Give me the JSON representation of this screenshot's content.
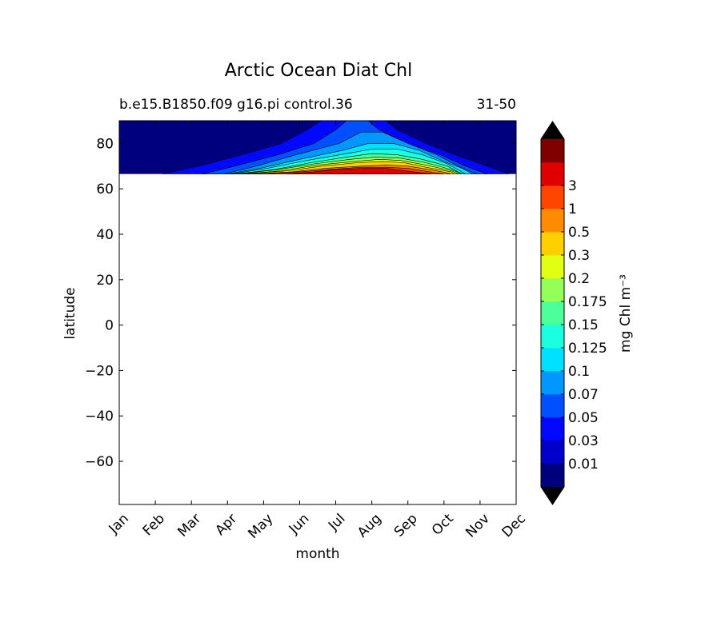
{
  "chart_data": {
    "type": "heatmap",
    "title": "Arctic Ocean Diat Chl",
    "subtitle_left": "b.e15.B1850.f09 g16.pi control.36",
    "subtitle_right": "31-50",
    "xlabel": "month",
    "ylabel": "latitude",
    "x_ticks": [
      "Jan",
      "Feb",
      "Mar",
      "Apr",
      "May",
      "Jun",
      "Jul",
      "Aug",
      "Sep",
      "Oct",
      "Nov",
      "Dec"
    ],
    "y_ticks": [
      80,
      60,
      40,
      20,
      0,
      -20,
      -40,
      -60
    ],
    "y_tick_labels": [
      "80",
      "60",
      "40",
      "20",
      "0",
      "−20",
      "−40",
      "−60"
    ],
    "xlim": [
      0,
      11
    ],
    "ylim": [
      -79,
      90
    ],
    "data_latitude_range": [
      66.5,
      90
    ],
    "colorbar": {
      "label": "mg Chl m⁻³",
      "levels": [
        "0.01",
        "0.03",
        "0.05",
        "0.07",
        "0.1",
        "0.125",
        "0.15",
        "0.175",
        "0.2",
        "0.3",
        "0.5",
        "1",
        "3"
      ],
      "colors": [
        "#00007f",
        "#0000c8",
        "#0008ff",
        "#0050ff",
        "#0098ff",
        "#00e0ff",
        "#1affe0",
        "#4dff9a",
        "#96ff57",
        "#e0ff12",
        "#ffd000",
        "#ff8c00",
        "#ff4600",
        "#e00000",
        "#800000"
      ],
      "extend": "both"
    },
    "regions": [
      {
        "level_index": 2,
        "points": [
          [
            1.2,
            66.5
          ],
          [
            2.2,
            70
          ],
          [
            3.4,
            75
          ],
          [
            4.5,
            80
          ],
          [
            5.2,
            86
          ],
          [
            5.6,
            90
          ],
          [
            7.4,
            90
          ],
          [
            7.7,
            86
          ],
          [
            8.5,
            80
          ],
          [
            9.3,
            75
          ],
          [
            10.2,
            70
          ],
          [
            10.8,
            66.5
          ]
        ]
      },
      {
        "level_index": 3,
        "points": [
          [
            2.3,
            66.5
          ],
          [
            3.2,
            70
          ],
          [
            4.4,
            75
          ],
          [
            5.4,
            80
          ],
          [
            6.0,
            86
          ],
          [
            6.3,
            90
          ],
          [
            6.9,
            90
          ],
          [
            7.2,
            86
          ],
          [
            8.0,
            80
          ],
          [
            8.9,
            75
          ],
          [
            9.6,
            70
          ],
          [
            10.2,
            66.5
          ]
        ]
      },
      {
        "level_index": 4,
        "points": [
          [
            2.9,
            66.5
          ],
          [
            3.8,
            70
          ],
          [
            4.9,
            75
          ],
          [
            6.1,
            80
          ],
          [
            6.7,
            85
          ],
          [
            7.3,
            85
          ],
          [
            8.0,
            80
          ],
          [
            8.8,
            75
          ],
          [
            9.4,
            70
          ],
          [
            9.9,
            66.5
          ]
        ]
      },
      {
        "level_index": 5,
        "points": [
          [
            3.0,
            66.5
          ],
          [
            3.9,
            69
          ],
          [
            5.0,
            73
          ],
          [
            6.2,
            77
          ],
          [
            6.9,
            80
          ],
          [
            7.6,
            80
          ],
          [
            8.3,
            77
          ],
          [
            9.0,
            72
          ],
          [
            9.5,
            69
          ],
          [
            9.8,
            66.5
          ]
        ]
      },
      {
        "level_index": 6,
        "points": [
          [
            3.1,
            66.5
          ],
          [
            4.1,
            69
          ],
          [
            5.2,
            72.5
          ],
          [
            6.3,
            75.5
          ],
          [
            7.0,
            77.5
          ],
          [
            7.7,
            77.5
          ],
          [
            8.4,
            75
          ],
          [
            9.1,
            71
          ],
          [
            9.6,
            66.5
          ]
        ]
      },
      {
        "level_index": 7,
        "points": [
          [
            3.2,
            66.5
          ],
          [
            4.3,
            68.5
          ],
          [
            5.3,
            71.5
          ],
          [
            6.3,
            74
          ],
          [
            7.0,
            75.5
          ],
          [
            7.7,
            75
          ],
          [
            8.4,
            73
          ],
          [
            9.1,
            70
          ],
          [
            9.5,
            66.5
          ]
        ]
      },
      {
        "level_index": 8,
        "points": [
          [
            3.3,
            66.5
          ],
          [
            4.4,
            68.5
          ],
          [
            5.4,
            71
          ],
          [
            6.4,
            73
          ],
          [
            7.1,
            74
          ],
          [
            7.8,
            73.5
          ],
          [
            8.5,
            71.5
          ],
          [
            9.2,
            68.5
          ],
          [
            9.5,
            66.5
          ]
        ]
      },
      {
        "level_index": 9,
        "points": [
          [
            3.4,
            66.5
          ],
          [
            4.5,
            68
          ],
          [
            5.5,
            70.5
          ],
          [
            6.5,
            72
          ],
          [
            7.2,
            73
          ],
          [
            7.8,
            72.5
          ],
          [
            8.5,
            70.5
          ],
          [
            9.2,
            68
          ],
          [
            9.4,
            66.5
          ]
        ]
      },
      {
        "level_index": 10,
        "points": [
          [
            3.5,
            66.5
          ],
          [
            4.7,
            68
          ],
          [
            5.6,
            70
          ],
          [
            6.6,
            71.5
          ],
          [
            7.3,
            72
          ],
          [
            7.9,
            71.5
          ],
          [
            8.5,
            69.5
          ],
          [
            9.2,
            67.5
          ],
          [
            9.3,
            66.5
          ]
        ]
      },
      {
        "level_index": 11,
        "points": [
          [
            3.7,
            66.5
          ],
          [
            4.8,
            67.5
          ],
          [
            5.7,
            69
          ],
          [
            6.7,
            70
          ],
          [
            7.4,
            70.5
          ],
          [
            8.0,
            70
          ],
          [
            8.6,
            68.5
          ],
          [
            9.1,
            67
          ],
          [
            9.2,
            66.5
          ]
        ]
      },
      {
        "level_index": 12,
        "points": [
          [
            4.0,
            66.5
          ],
          [
            5.0,
            67.5
          ],
          [
            5.8,
            68.5
          ],
          [
            6.7,
            69.5
          ],
          [
            7.4,
            69.5
          ],
          [
            8.0,
            69
          ],
          [
            8.6,
            67.5
          ],
          [
            9.0,
            66.5
          ]
        ]
      },
      {
        "level_index": 13,
        "points": [
          [
            4.6,
            66.5
          ],
          [
            5.4,
            67.5
          ],
          [
            6.0,
            68.5
          ],
          [
            6.8,
            69
          ],
          [
            7.4,
            69
          ],
          [
            7.9,
            68
          ],
          [
            8.4,
            67
          ],
          [
            8.7,
            66.5
          ]
        ]
      }
    ]
  }
}
